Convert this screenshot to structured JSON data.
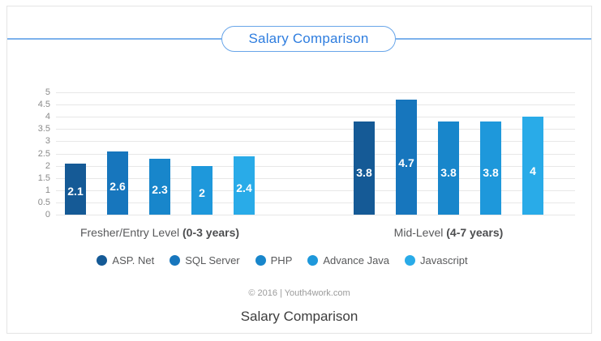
{
  "header": {
    "title": "Salary Comparison",
    "accent_color": "#2e7ddf"
  },
  "chart_data": {
    "type": "bar",
    "title": "Salary Comparison",
    "categories": [
      "Fresher/Entry Level (0-3 years)",
      "Mid-Level (4-7 years)"
    ],
    "category_labels": [
      {
        "prefix": "Fresher/Entry Level ",
        "bold": "(0-3 years)"
      },
      {
        "prefix": "Mid-Level ",
        "bold": "(4-7 years)"
      }
    ],
    "series": [
      {
        "name": "ASP. Net",
        "color": "#155a96",
        "values": [
          2.1,
          3.8
        ]
      },
      {
        "name": "SQL Server",
        "color": "#1776bd",
        "values": [
          2.6,
          4.7
        ]
      },
      {
        "name": "PHP",
        "color": "#1886cb",
        "values": [
          2.3,
          3.8
        ]
      },
      {
        "name": "Advance Java",
        "color": "#1e98db",
        "values": [
          2.0,
          3.8
        ]
      },
      {
        "name": "Javascript",
        "color": "#29abe8",
        "values": [
          2.4,
          4.0
        ]
      }
    ],
    "xlabel": "",
    "ylabel": "",
    "ylim": [
      0,
      5
    ],
    "ytick_step": 0.5,
    "grid": true,
    "gridline_color": "#e7e7e7",
    "legend_position": "bottom",
    "value_label_color": "#ffffff"
  },
  "footer": {
    "copyright": "© 2016 | Youth4work.com",
    "caption": "Salary Comparison"
  }
}
